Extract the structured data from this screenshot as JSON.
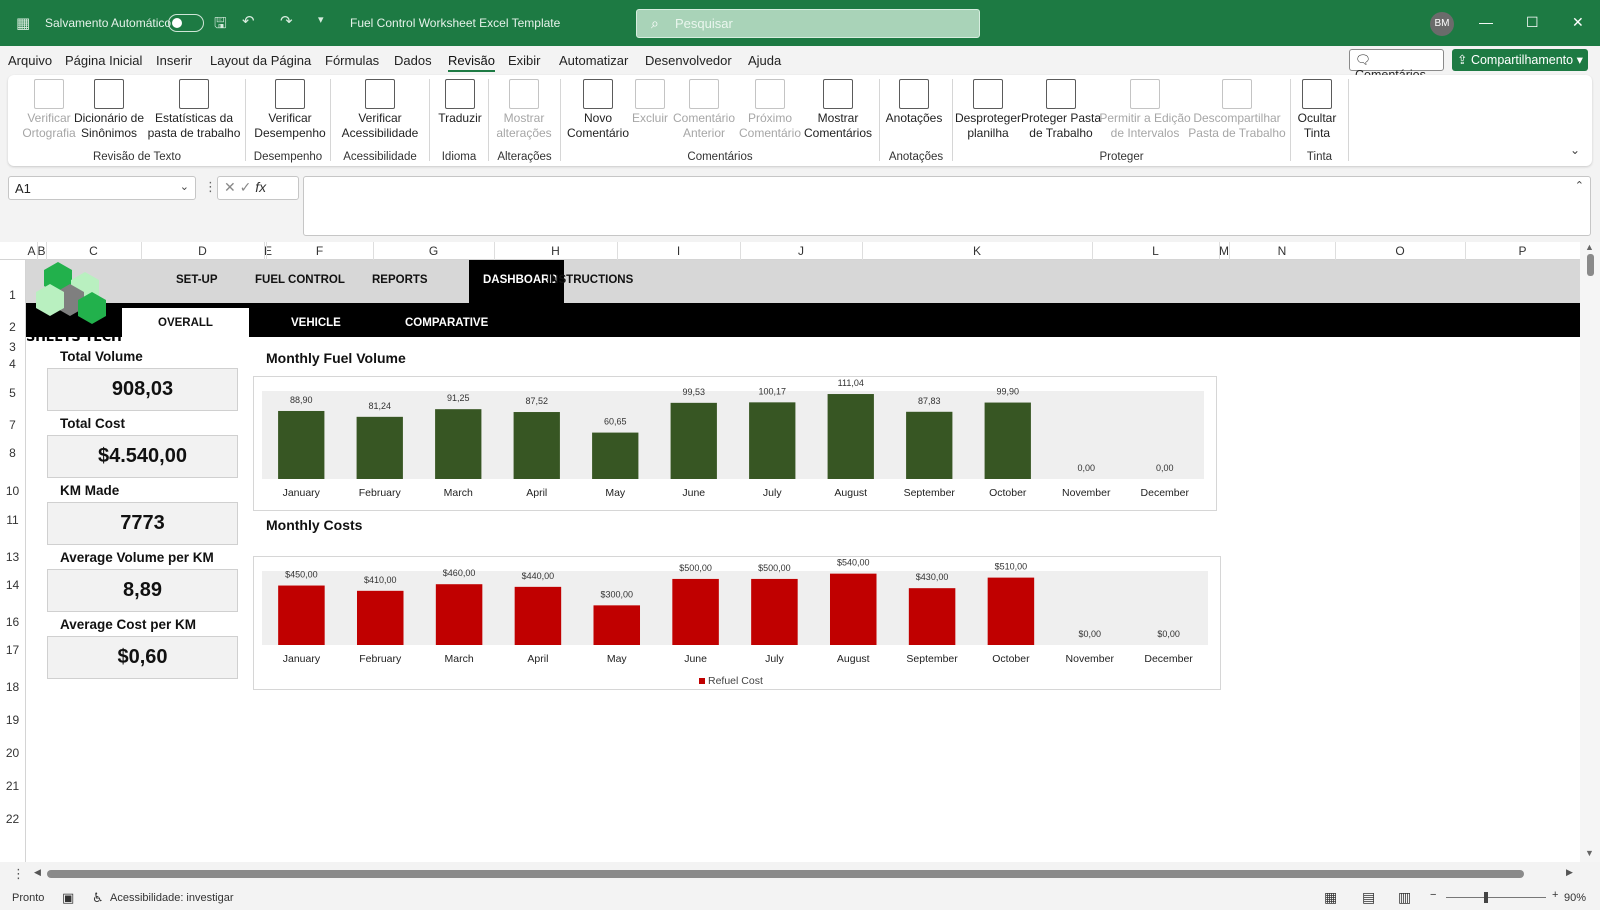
{
  "titlebar": {
    "autosave_label": "Salvamento Automático",
    "doc_title": "Fuel Control Worksheet Excel Template",
    "search_placeholder": "Pesquisar",
    "avatar_initials": "BM"
  },
  "menu": {
    "items": [
      "Arquivo",
      "Página Inicial",
      "Inserir",
      "Layout da Página",
      "Fórmulas",
      "Dados",
      "Revisão",
      "Exibir",
      "Automatizar",
      "Desenvolvedor",
      "Ajuda"
    ],
    "active": "Revisão",
    "comments_button": "Comentários",
    "share_button": "Compartilhamento"
  },
  "ribbon": {
    "buttons": [
      {
        "l1": "Verificar",
        "l2": "Ortografia",
        "enabled": false,
        "icon": "spellcheck-icon"
      },
      {
        "l1": "Dicionário de",
        "l2": "Sinônimos",
        "enabled": true,
        "icon": "thesaurus-icon"
      },
      {
        "l1": "Estatísticas da",
        "l2": "pasta de trabalho",
        "enabled": true,
        "icon": "workbook-stats-icon"
      },
      {
        "l1": "Verificar",
        "l2": "Desempenho",
        "enabled": true,
        "icon": "performance-icon"
      },
      {
        "l1": "Verificar",
        "l2": "Acessibilidade",
        "enabled": true,
        "icon": "accessibility-icon"
      },
      {
        "l1": "Traduzir",
        "l2": "",
        "enabled": true,
        "icon": "translate-icon"
      },
      {
        "l1": "Mostrar",
        "l2": "alterações",
        "enabled": false,
        "icon": "show-changes-icon"
      },
      {
        "l1": "Novo",
        "l2": "Comentário",
        "enabled": true,
        "icon": "new-comment-icon"
      },
      {
        "l1": "Excluir",
        "l2": "",
        "enabled": false,
        "icon": "delete-comment-icon"
      },
      {
        "l1": "Comentário",
        "l2": "Anterior",
        "enabled": false,
        "icon": "previous-comment-icon"
      },
      {
        "l1": "Próximo",
        "l2": "Comentário",
        "enabled": false,
        "icon": "next-comment-icon"
      },
      {
        "l1": "Mostrar",
        "l2": "Comentários",
        "enabled": true,
        "icon": "show-comments-icon"
      },
      {
        "l1": "Anotações",
        "l2": "",
        "enabled": true,
        "icon": "notes-icon"
      },
      {
        "l1": "Desproteger",
        "l2": "planilha",
        "enabled": true,
        "icon": "unprotect-sheet-icon"
      },
      {
        "l1": "Proteger Pasta",
        "l2": "de Trabalho",
        "enabled": true,
        "icon": "protect-workbook-icon"
      },
      {
        "l1": "Permitir a Edição",
        "l2": "de Intervalos",
        "enabled": false,
        "icon": "allow-edit-ranges-icon"
      },
      {
        "l1": "Descompartilhar",
        "l2": "Pasta de Trabalho",
        "enabled": false,
        "icon": "unshare-workbook-icon"
      },
      {
        "l1": "Ocultar",
        "l2": "Tinta",
        "enabled": true,
        "icon": "hide-ink-icon"
      }
    ],
    "groups": [
      "Revisão de Texto",
      "Desempenho",
      "Acessibilidade",
      "Idioma",
      "Alterações",
      "Comentários",
      "Anotações",
      "Proteger",
      "Tinta"
    ]
  },
  "formula": {
    "cell_ref": "A1",
    "fx_label": "fx",
    "value": ""
  },
  "grid": {
    "columns": [
      "A",
      "B",
      "C",
      "D",
      "E",
      "F",
      "G",
      "H",
      "I",
      "J",
      "K",
      "L",
      "M",
      "N",
      "O",
      "P"
    ],
    "rows": [
      "1",
      "2",
      "3",
      "4",
      "5",
      "7",
      "8",
      "10",
      "11",
      "13",
      "14",
      "16",
      "17",
      "18",
      "19",
      "20",
      "21",
      "22"
    ]
  },
  "dashboard": {
    "logo_text": "SHEETS TECH",
    "nav": [
      "SET-UP",
      "FUEL CONTROL",
      "REPORTS",
      "DASHBOARD",
      "INSTRUCTIONS"
    ],
    "active_nav": "DASHBOARD",
    "subnav": [
      "OVERALL",
      "VEHICLE",
      "COMPARATIVE"
    ],
    "active_subnav": "OVERALL",
    "kpis": [
      {
        "label": "Total Volume",
        "value": "908,03"
      },
      {
        "label": "Total Cost",
        "value": "$4.540,00"
      },
      {
        "label": "KM Made",
        "value": "7773"
      },
      {
        "label": "Average Volume per KM",
        "value": "8,89"
      },
      {
        "label": "Average Cost per KM",
        "value": "$0,60"
      }
    ]
  },
  "chart_data": [
    {
      "type": "bar",
      "title": "Monthly Fuel Volume",
      "categories": [
        "January",
        "February",
        "March",
        "April",
        "May",
        "June",
        "July",
        "August",
        "September",
        "October",
        "November",
        "December"
      ],
      "values": [
        88.9,
        81.24,
        91.25,
        87.52,
        60.65,
        99.53,
        100.17,
        111.04,
        87.83,
        99.9,
        0.0,
        0.0
      ],
      "data_labels": [
        "88,90",
        "81,24",
        "91,25",
        "87,52",
        "60,65",
        "99,53",
        "100,17",
        "111,04",
        "87,83",
        "99,90",
        "0,00",
        "0,00"
      ],
      "color": "#375623",
      "ylim": [
        0,
        115
      ],
      "legend": ""
    },
    {
      "type": "bar",
      "title": "Monthly Costs",
      "categories": [
        "January",
        "February",
        "March",
        "April",
        "May",
        "June",
        "July",
        "August",
        "September",
        "October",
        "November",
        "December"
      ],
      "series": [
        {
          "name": "Refuel Cost",
          "values": [
            450,
            410,
            460,
            440,
            300,
            500,
            500,
            540,
            430,
            510,
            0,
            0
          ]
        }
      ],
      "data_labels": [
        "$450,00",
        "$410,00",
        "$460,00",
        "$440,00",
        "$300,00",
        "$500,00",
        "$500,00",
        "$540,00",
        "$430,00",
        "$510,00",
        "$0,00",
        "$0,00"
      ],
      "color": "#c00000",
      "ylim": [
        0,
        560
      ],
      "legend": "Refuel Cost"
    }
  ],
  "status": {
    "ready": "Pronto",
    "accessibility": "Acessibilidade: investigar",
    "zoom": "90%"
  }
}
